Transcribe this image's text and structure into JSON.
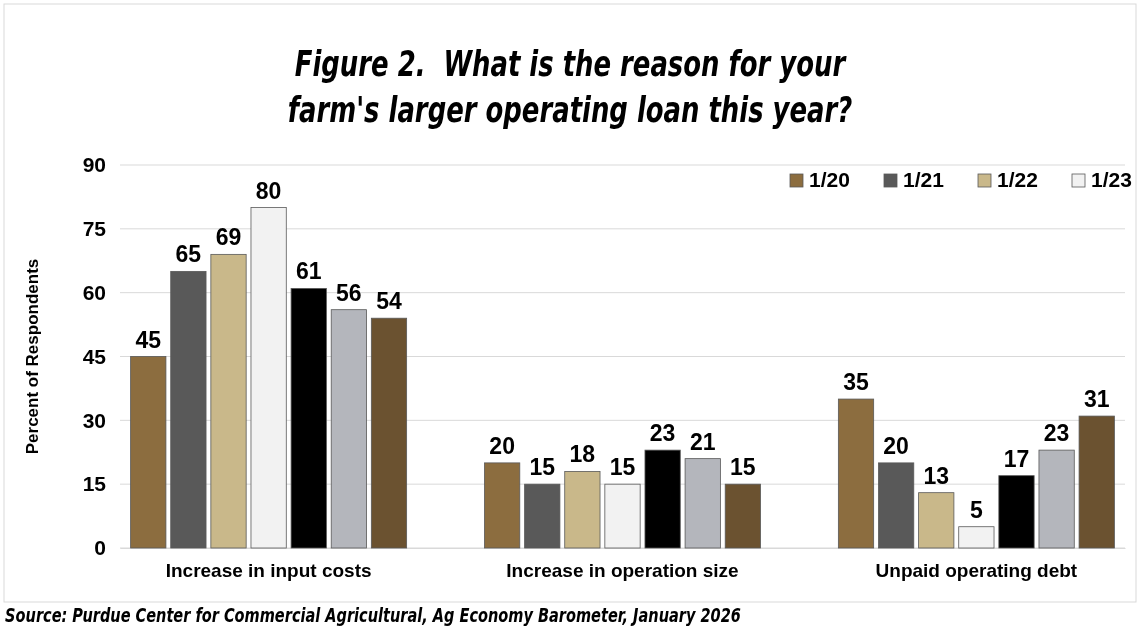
{
  "chart_data": {
    "type": "bar",
    "title": "Figure 2.  What is the reason for your farm's larger operating loan this year?",
    "ylabel": "Percent of Respondents",
    "categories": [
      "Increase in input costs",
      "Increase in operation size",
      "Unpaid operating debt"
    ],
    "series": [
      {
        "name": "1/20",
        "color": "#8c6d3f",
        "values": [
          45,
          20,
          35
        ]
      },
      {
        "name": "1/21",
        "color": "#595959",
        "values": [
          65,
          15,
          20
        ]
      },
      {
        "name": "1/22",
        "color": "#c9b88a",
        "values": [
          69,
          18,
          13
        ]
      },
      {
        "name": "1/23",
        "color": "#f2f2f2",
        "values": [
          80,
          15,
          5
        ]
      },
      {
        "color": "#000000",
        "values": [
          61,
          23,
          17
        ]
      },
      {
        "color": "#b4b6bc",
        "values": [
          56,
          21,
          23
        ]
      },
      {
        "color": "#6b5230",
        "values": [
          54,
          15,
          31
        ]
      }
    ],
    "ylim": [
      0,
      90
    ],
    "yticks": [
      0,
      15,
      30,
      45,
      60,
      75,
      90
    ],
    "grid": "y",
    "legend": "top right",
    "data_labels": true,
    "annotations": [
      "Source: Purdue Center for Commercial Agricultural, Ag Economy Barometer, January 2026"
    ]
  }
}
